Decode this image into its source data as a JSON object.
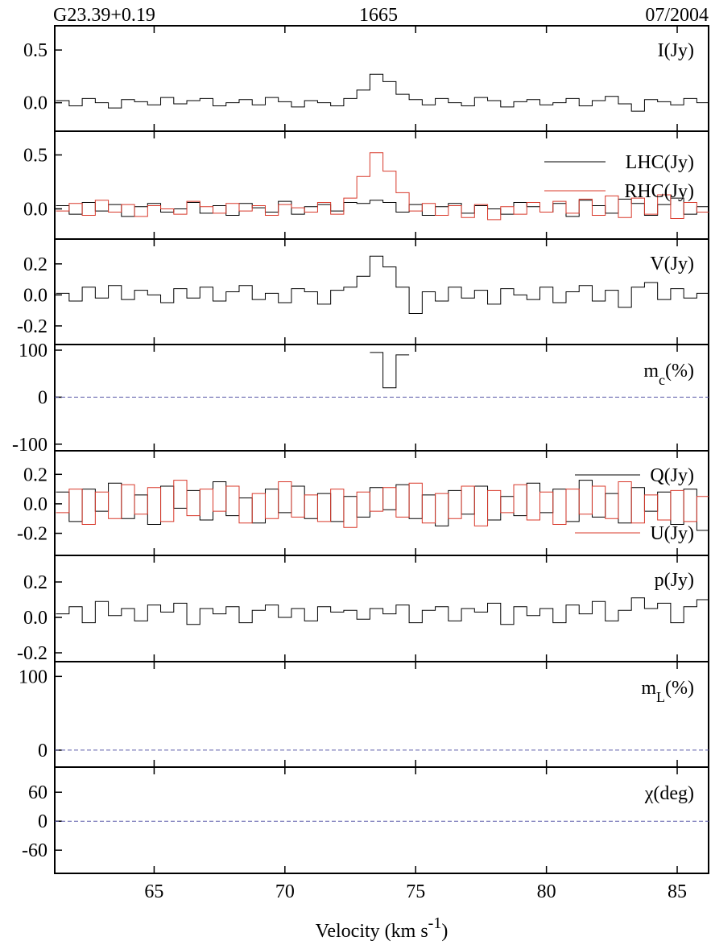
{
  "chart_data": [
    {
      "type": "line",
      "title_left": "G23.39+0.19",
      "title": "1665",
      "title_right": "07/2004",
      "xlim": [
        61.2,
        86.2
      ],
      "xticks": [
        65,
        70,
        75,
        80,
        85
      ],
      "ylim": [
        -0.27,
        0.73
      ],
      "yticks": [
        0.5,
        {
          "value": 0,
          "label": "0.0"
        }
      ],
      "x": [
        61.5,
        62,
        62.5,
        63,
        63.5,
        64,
        64.5,
        65,
        65.5,
        66,
        66.5,
        67,
        67.5,
        68,
        68.5,
        69,
        69.5,
        70,
        70.5,
        71,
        71.5,
        72,
        72.5,
        73,
        73.5,
        74,
        74.5,
        75,
        75.5,
        76,
        76.5,
        77,
        77.5,
        78,
        78.5,
        79,
        79.5,
        80,
        80.5,
        81,
        81.5,
        82,
        82.5,
        83,
        83.5,
        84,
        84.5,
        85,
        85.5,
        86
      ],
      "series": [
        {
          "name": "I(Jy)",
          "color": "#000000",
          "values": [
            0.02,
            -0.03,
            0.04,
            0.0,
            -0.05,
            0.03,
            0.01,
            -0.02,
            0.05,
            -0.01,
            0.02,
            0.04,
            -0.03,
            0.0,
            0.03,
            -0.02,
            0.05,
            0.01,
            -0.04,
            0.02,
            0.0,
            -0.03,
            0.04,
            0.12,
            0.27,
            0.2,
            0.08,
            0.03,
            -0.02,
            0.04,
            0.0,
            -0.03,
            0.05,
            0.02,
            -0.04,
            0.01,
            0.03,
            -0.02,
            0.0,
            0.04,
            -0.03,
            0.02,
            0.06,
            -0.01,
            -0.08,
            0.03,
            0.01,
            -0.02,
            0.04,
            0.0
          ]
        }
      ]
    },
    {
      "type": "line",
      "legend": "upper right",
      "xlim": [
        61.2,
        86.2
      ],
      "xticks": [
        65,
        70,
        75,
        80,
        85
      ],
      "ylim": [
        -0.28,
        0.72
      ],
      "yticks": [
        0.5,
        {
          "value": 0,
          "label": "0.0"
        }
      ],
      "x": [
        61.5,
        62,
        62.5,
        63,
        63.5,
        64,
        64.5,
        65,
        65.5,
        66,
        66.5,
        67,
        67.5,
        68,
        68.5,
        69,
        69.5,
        70,
        70.5,
        71,
        71.5,
        72,
        72.5,
        73,
        73.5,
        74,
        74.5,
        75,
        75.5,
        76,
        76.5,
        77,
        77.5,
        78,
        78.5,
        79,
        79.5,
        80,
        80.5,
        81,
        81.5,
        82,
        82.5,
        83,
        83.5,
        84,
        84.5,
        85,
        85.5,
        86
      ],
      "series": [
        {
          "name": "LHC(Jy)",
          "color": "#000000",
          "values": [
            0.03,
            -0.05,
            0.06,
            -0.02,
            0.04,
            -0.07,
            0.02,
            0.05,
            -0.03,
            0.0,
            0.06,
            -0.04,
            0.03,
            -0.06,
            0.05,
            0.01,
            -0.03,
            0.07,
            -0.05,
            0.02,
            0.04,
            -0.02,
            0.06,
            0.05,
            0.08,
            0.06,
            -0.03,
            0.04,
            -0.06,
            0.02,
            0.05,
            -0.04,
            0.03,
            0.0,
            -0.05,
            0.06,
            0.02,
            -0.03,
            0.05,
            -0.07,
            0.08,
            0.03,
            -0.04,
            0.09,
            0.05,
            -0.06,
            0.04,
            0.1,
            -0.05,
            0.02
          ]
        },
        {
          "name": "RHC(Jy)",
          "color": "#d8382a",
          "values": [
            -0.02,
            0.05,
            -0.06,
            0.08,
            -0.03,
            0.04,
            -0.07,
            0.03,
            0.0,
            -0.05,
            0.07,
            0.02,
            -0.04,
            0.05,
            -0.02,
            0.03,
            -0.06,
            0.04,
            0.01,
            -0.03,
            0.06,
            -0.05,
            0.1,
            0.3,
            0.52,
            0.35,
            0.15,
            -0.02,
            0.05,
            -0.06,
            0.03,
            -0.08,
            0.04,
            -0.1,
            0.02,
            -0.05,
            0.06,
            -0.03,
            0.07,
            -0.04,
            0.09,
            -0.06,
            0.12,
            -0.08,
            0.1,
            -0.05,
            0.13,
            -0.09,
            0.06,
            -0.03
          ]
        }
      ]
    },
    {
      "type": "line",
      "xlim": [
        61.2,
        86.2
      ],
      "xticks": [
        65,
        70,
        75,
        80,
        85
      ],
      "ylim": [
        -0.32,
        0.36
      ],
      "yticks": [
        0.2,
        {
          "value": 0,
          "label": "0.0"
        },
        -0.2
      ],
      "x": [
        61.5,
        62,
        62.5,
        63,
        63.5,
        64,
        64.5,
        65,
        65.5,
        66,
        66.5,
        67,
        67.5,
        68,
        68.5,
        69,
        69.5,
        70,
        70.5,
        71,
        71.5,
        72,
        72.5,
        73,
        73.5,
        74,
        74.5,
        75,
        75.5,
        76,
        76.5,
        77,
        77.5,
        78,
        78.5,
        79,
        79.5,
        80,
        80.5,
        81,
        81.5,
        82,
        82.5,
        83,
        83.5,
        84,
        84.5,
        85,
        85.5,
        86
      ],
      "series": [
        {
          "name": "V(Jy)",
          "color": "#000000",
          "values": [
            0.01,
            -0.04,
            0.05,
            -0.02,
            0.06,
            -0.03,
            0.03,
            0.0,
            -0.05,
            0.04,
            -0.02,
            0.05,
            -0.04,
            0.02,
            0.06,
            -0.03,
            0.01,
            -0.05,
            0.04,
            0.02,
            -0.06,
            0.03,
            0.05,
            0.12,
            0.25,
            0.18,
            0.05,
            -0.12,
            0.02,
            -0.04,
            0.05,
            -0.02,
            0.03,
            -0.06,
            0.04,
            0.0,
            -0.03,
            0.05,
            -0.05,
            0.02,
            0.06,
            -0.04,
            0.03,
            -0.08,
            0.05,
            0.08,
            -0.03,
            0.04,
            -0.02,
            0.01
          ]
        }
      ]
    },
    {
      "type": "line",
      "label": "m",
      "label_sub": "c",
      "label_end": "(%)",
      "hline": 0,
      "hline_color": "#5a5aa8",
      "xlim": [
        61.2,
        86.2
      ],
      "xticks": [
        65,
        70,
        75,
        80,
        85
      ],
      "ylim": [
        -114,
        112
      ],
      "yticks": [
        100,
        0,
        -100
      ],
      "x": [
        73.5,
        74,
        74.5
      ],
      "series": [
        {
          "color": "#000000",
          "values": [
            95,
            20,
            90
          ]
        }
      ]
    },
    {
      "type": "line",
      "legend": "right",
      "xlim": [
        61.2,
        86.2
      ],
      "xticks": [
        65,
        70,
        75,
        80,
        85
      ],
      "ylim": [
        -0.35,
        0.36
      ],
      "yticks": [
        0.2,
        {
          "value": 0,
          "label": "0.0"
        },
        -0.2
      ],
      "x": [
        61.5,
        62,
        62.5,
        63,
        63.5,
        64,
        64.5,
        65,
        65.5,
        66,
        66.5,
        67,
        67.5,
        68,
        68.5,
        69,
        69.5,
        70,
        70.5,
        71,
        71.5,
        72,
        72.5,
        73,
        73.5,
        74,
        74.5,
        75,
        75.5,
        76,
        76.5,
        77,
        77.5,
        78,
        78.5,
        79,
        79.5,
        80,
        80.5,
        81,
        81.5,
        82,
        82.5,
        83,
        83.5,
        84,
        84.5,
        85,
        85.5,
        86
      ],
      "series": [
        {
          "name": "Q(Jy)",
          "color": "#000000",
          "values": [
            0.08,
            -0.12,
            0.1,
            -0.05,
            0.14,
            -0.1,
            0.06,
            -0.14,
            0.12,
            -0.03,
            0.09,
            -0.11,
            0.15,
            -0.08,
            0.04,
            -0.13,
            0.1,
            -0.06,
            0.12,
            -0.1,
            0.07,
            -0.12,
            0.05,
            -0.09,
            0.11,
            -0.04,
            0.13,
            -0.1,
            0.06,
            -0.15,
            0.09,
            -0.07,
            0.12,
            -0.11,
            0.05,
            -0.08,
            0.14,
            -0.06,
            0.1,
            -0.12,
            0.16,
            -0.09,
            0.07,
            -0.13,
            0.11,
            -0.05,
            0.08,
            -0.14,
            0.1,
            -0.18
          ]
        },
        {
          "name": "U(Jy)",
          "color": "#d8382a",
          "values": [
            -0.06,
            0.1,
            -0.14,
            0.08,
            -0.1,
            0.13,
            -0.07,
            0.11,
            -0.12,
            0.16,
            -0.08,
            0.1,
            -0.05,
            0.12,
            -0.13,
            0.07,
            -0.1,
            0.15,
            -0.09,
            0.06,
            -0.12,
            0.1,
            -0.16,
            0.08,
            -0.05,
            0.11,
            -0.09,
            0.14,
            -0.13,
            0.07,
            -0.1,
            0.12,
            -0.15,
            0.09,
            -0.06,
            0.13,
            -0.11,
            0.08,
            -0.14,
            0.1,
            -0.07,
            0.12,
            -0.1,
            0.15,
            -0.13,
            0.06,
            -0.11,
            0.09,
            -0.12,
            0.05
          ]
        }
      ]
    },
    {
      "type": "line",
      "xlim": [
        61.2,
        86.2
      ],
      "xticks": [
        65,
        70,
        75,
        80,
        85
      ],
      "ylim": [
        -0.25,
        0.35
      ],
      "yticks": [
        0.2,
        {
          "value": 0,
          "label": "0.0"
        },
        -0.2
      ],
      "x": [
        61.5,
        62,
        62.5,
        63,
        63.5,
        64,
        64.5,
        65,
        65.5,
        66,
        66.5,
        67,
        67.5,
        68,
        68.5,
        69,
        69.5,
        70,
        70.5,
        71,
        71.5,
        72,
        72.5,
        73,
        73.5,
        74,
        74.5,
        75,
        75.5,
        76,
        76.5,
        77,
        77.5,
        78,
        78.5,
        79,
        79.5,
        80,
        80.5,
        81,
        81.5,
        82,
        82.5,
        83,
        83.5,
        84,
        84.5,
        85,
        85.5,
        86
      ],
      "series": [
        {
          "name": "p(Jy)",
          "color": "#000000",
          "values": [
            0.02,
            0.06,
            -0.03,
            0.09,
            0.01,
            0.05,
            -0.02,
            0.07,
            0.03,
            0.08,
            -0.04,
            0.05,
            0.02,
            0.06,
            -0.03,
            0.04,
            0.07,
            0.0,
            0.05,
            -0.02,
            0.06,
            0.03,
            0.04,
            -0.01,
            0.05,
            0.02,
            0.07,
            -0.03,
            0.04,
            0.06,
            -0.02,
            0.05,
            0.03,
            0.08,
            -0.04,
            0.06,
            0.01,
            0.05,
            -0.03,
            0.07,
            0.02,
            0.09,
            -0.02,
            0.04,
            0.11,
            0.05,
            0.08,
            -0.03,
            0.06,
            0.1
          ]
        }
      ]
    },
    {
      "type": "line",
      "label": "m",
      "label_sub": "L",
      "label_end": "(%)",
      "hline": 0,
      "hline_color": "#5a5aa8",
      "xlim": [
        61.2,
        86.2
      ],
      "xticks": [
        65,
        70,
        75,
        80,
        85
      ],
      "ylim": [
        -23,
        120
      ],
      "yticks": [
        100,
        0
      ]
    },
    {
      "type": "line",
      "label": "χ(deg)",
      "hline": 0,
      "hline_color": "#5a5aa8",
      "xlim": [
        61.2,
        86.2
      ],
      "xticks": [
        65,
        70,
        75,
        80,
        85
      ],
      "ylim": [
        -108,
        112
      ],
      "yticks": [
        60,
        0,
        -60
      ],
      "xlabel": "Velocity (km s",
      "xlabel_sup": "-1",
      "xlabel_end": ")"
    }
  ]
}
